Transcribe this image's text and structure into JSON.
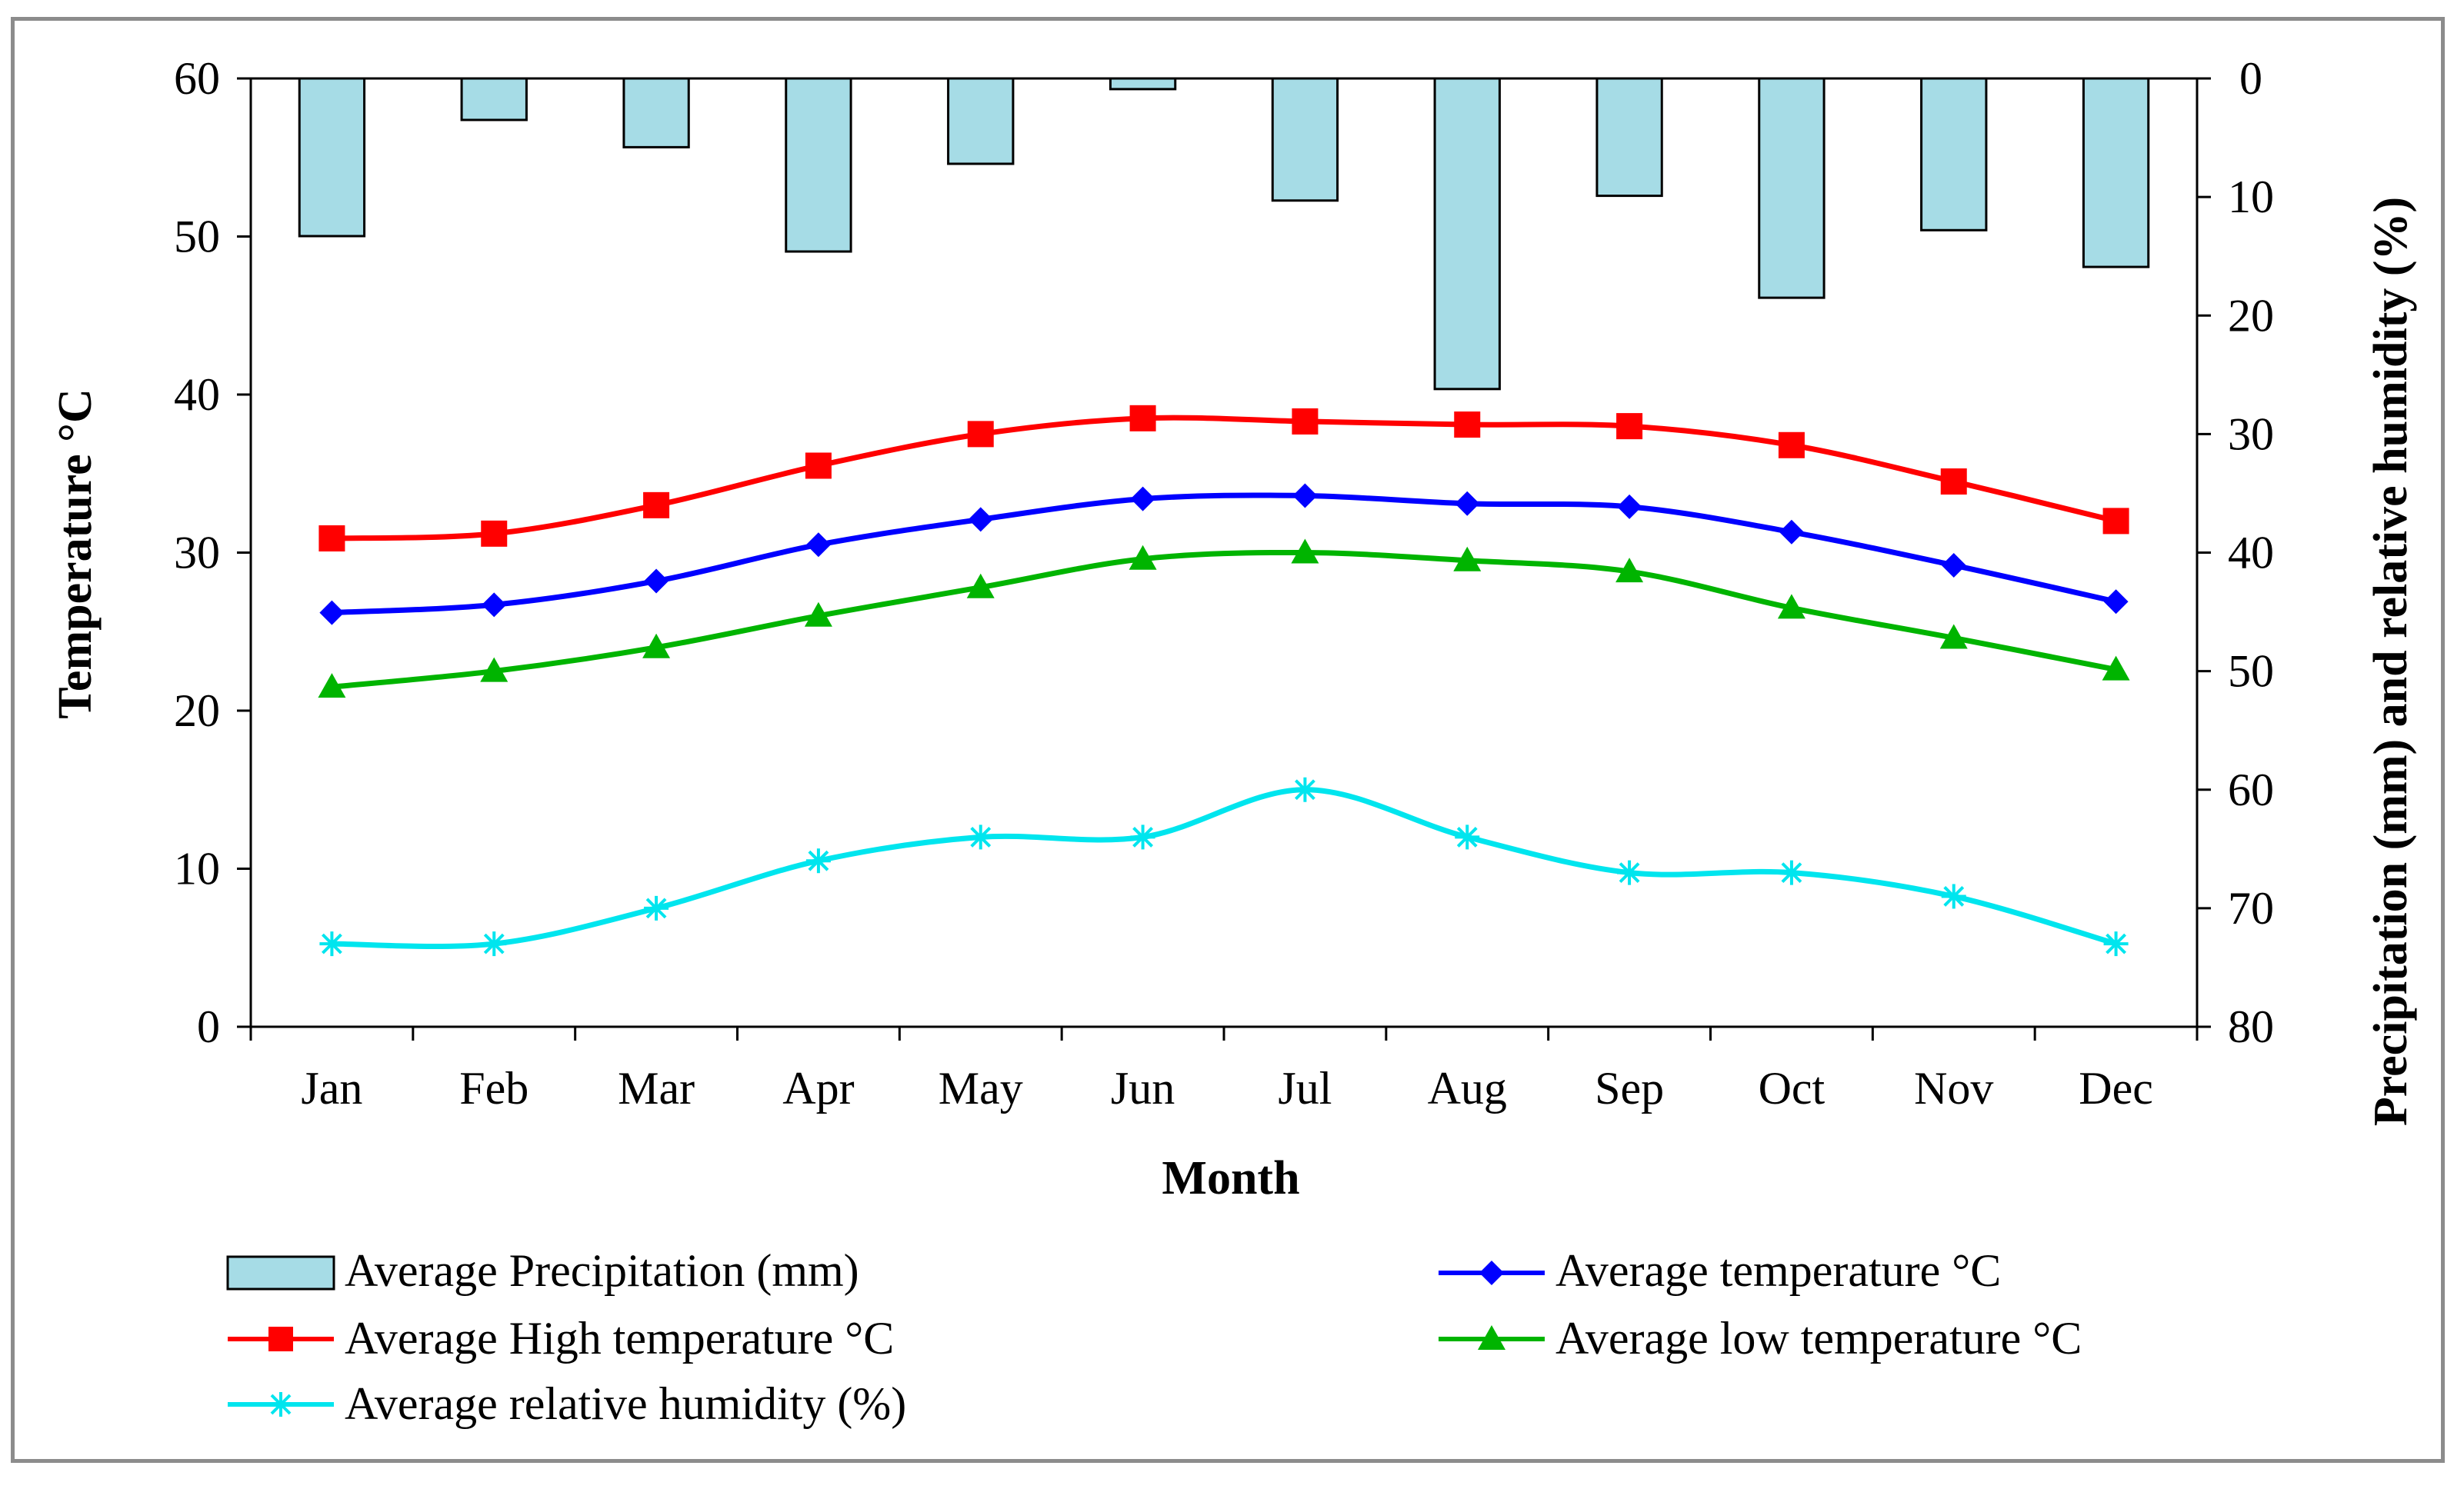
{
  "chart_data": {
    "type": "bar",
    "categories": [
      "Jan",
      "Feb",
      "Mar",
      "Apr",
      "May",
      "Jun",
      "Jul",
      "Aug",
      "Sep",
      "Oct",
      "Nov",
      "Dec"
    ],
    "xlabel": "Month",
    "ylabel": "Temperature °C",
    "y2label": "Precipitation (mm) and relative humidity (%)",
    "ylim": [
      0,
      60
    ],
    "y2lim": [
      0,
      80
    ],
    "y2_inverted": true,
    "yticks": [
      0,
      10,
      20,
      30,
      40,
      50,
      60
    ],
    "y2ticks": [
      0,
      10,
      20,
      30,
      40,
      50,
      60,
      70,
      80
    ],
    "grid": false,
    "legend_position": "bottom",
    "series": [
      {
        "name": "Average Precipitation (mm)",
        "kind": "bar",
        "axis": "right",
        "color": "#a6dce6",
        "values": [
          13.3,
          3.5,
          5.8,
          14.6,
          7.2,
          0.9,
          10.3,
          26.2,
          9.9,
          18.5,
          12.8,
          15.9
        ]
      },
      {
        "name": "Average temperature °C",
        "kind": "line",
        "axis": "left",
        "color": "#0000ff",
        "marker": "diamond",
        "values": [
          26.2,
          26.7,
          28.2,
          30.5,
          32.1,
          33.4,
          33.6,
          33.1,
          32.9,
          31.3,
          29.2,
          26.9
        ]
      },
      {
        "name": "Average High temperature °C",
        "kind": "line",
        "axis": "left",
        "color": "#ff0000",
        "marker": "square",
        "values": [
          30.9,
          31.2,
          33.0,
          35.5,
          37.5,
          38.5,
          38.3,
          38.1,
          38.0,
          36.8,
          34.5,
          32.0
        ]
      },
      {
        "name": "Average low temperature °C",
        "kind": "line",
        "axis": "left",
        "color": "#00b400",
        "marker": "triangle",
        "values": [
          21.5,
          22.5,
          24.0,
          26.0,
          27.8,
          29.6,
          30.0,
          29.5,
          28.8,
          26.5,
          24.6,
          22.6
        ]
      },
      {
        "name": "Average relative humidity (%)",
        "kind": "line",
        "axis": "right",
        "color": "#00e5ee",
        "marker": "star",
        "values": [
          73,
          73,
          70,
          66,
          64,
          64,
          60,
          64,
          67,
          67,
          69,
          73
        ]
      }
    ]
  }
}
